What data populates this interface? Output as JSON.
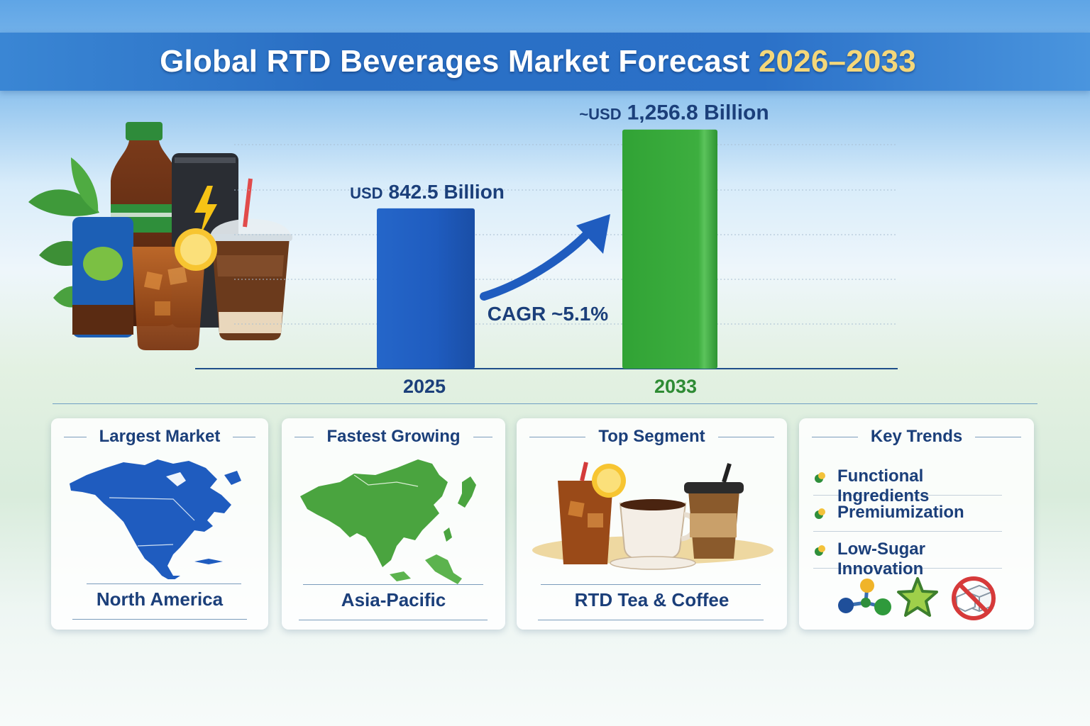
{
  "title": {
    "main": "Global RTD Beverages Market Forecast",
    "years": "2026–2033"
  },
  "chart_data": {
    "type": "bar",
    "categories": [
      "2025",
      "2033"
    ],
    "values": [
      842.5,
      1256.8
    ],
    "value_labels": [
      {
        "prefix": "USD",
        "amount": "842.5 Billion"
      },
      {
        "prefix": "~USD",
        "amount": "1,256.8 Billion"
      }
    ],
    "annotation": "CAGR ~5.1%",
    "colors": [
      "#1f5cbf",
      "#3aa53c"
    ],
    "grid": "dotted horizontal",
    "ylim": [
      0,
      1360
    ]
  },
  "colors": {
    "title_accent": "#f4d77a",
    "navy": "#1b3f7a",
    "blue": "#1f5cbf",
    "green": "#3aa53c"
  },
  "cards": [
    {
      "heading": "Largest Market",
      "value": "North America",
      "icon": "north-america-map-icon"
    },
    {
      "heading": "Fastest Growing",
      "value": "Asia-Pacific",
      "icon": "asia-pacific-map-icon"
    },
    {
      "heading": "Top Segment",
      "value": "RTD Tea & Coffee",
      "icon": "tea-and-coffee-drinks-icon"
    },
    {
      "heading": "Key Trends",
      "items": [
        "Functional Ingredients",
        "Premiumization",
        "Low-Sugar Innovation"
      ],
      "icons": [
        "molecule-icon",
        "star-icon",
        "no-sugar-icon"
      ]
    }
  ]
}
